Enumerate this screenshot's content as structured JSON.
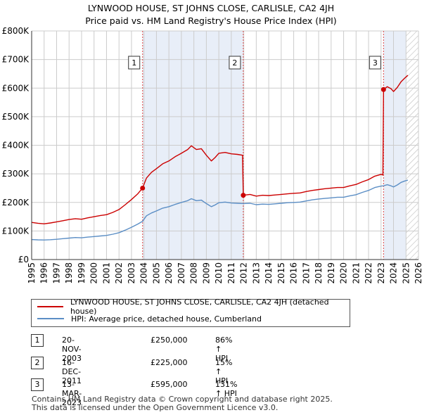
{
  "title_line1": "LYNWOOD HOUSE, ST JOHNS CLOSE, CARLISLE, CA2 4JH",
  "title_line2": "Price paid vs. HM Land Registry's House Price Index (HPI)",
  "colors": {
    "price_paid": "#cc0000",
    "hpi": "#5b8ec5",
    "shade": "#e8eef8",
    "grid": "#cccccc",
    "marker_line": "#dd4444"
  },
  "chart_data": {
    "type": "line",
    "xlim": [
      1995,
      2026
    ],
    "ylim": [
      0,
      800000
    ],
    "x_ticks": [
      "1995",
      "1996",
      "1997",
      "1998",
      "1999",
      "2000",
      "2001",
      "2002",
      "2003",
      "2004",
      "2005",
      "2006",
      "2007",
      "2008",
      "2009",
      "2010",
      "2011",
      "2012",
      "2013",
      "2014",
      "2015",
      "2016",
      "2017",
      "2018",
      "2019",
      "2020",
      "2021",
      "2022",
      "2023",
      "2024",
      "2025",
      "2026"
    ],
    "y_ticks": [
      {
        "value": 0,
        "label": "£0"
      },
      {
        "value": 100000,
        "label": "£100K"
      },
      {
        "value": 200000,
        "label": "£200K"
      },
      {
        "value": 300000,
        "label": "£300K"
      },
      {
        "value": 400000,
        "label": "£400K"
      },
      {
        "value": 500000,
        "label": "£500K"
      },
      {
        "value": 600000,
        "label": "£600K"
      },
      {
        "value": 700000,
        "label": "£700K"
      },
      {
        "value": 800000,
        "label": "£800K"
      }
    ],
    "shaded_ranges": [
      [
        2003.89,
        2011.96
      ],
      [
        2023.2,
        2025.0
      ]
    ],
    "hatched_range": [
      2025.0,
      2026.0
    ],
    "series": [
      {
        "name": "LYNWOOD HOUSE, ST JOHNS CLOSE, CARLISLE, CA2 4JH (detached house)",
        "color": "#cc0000",
        "points": [
          [
            1995.0,
            130000
          ],
          [
            1995.5,
            127000
          ],
          [
            1996.0,
            125000
          ],
          [
            1996.5,
            128000
          ],
          [
            1997.0,
            132000
          ],
          [
            1997.5,
            136000
          ],
          [
            1998.0,
            140000
          ],
          [
            1998.5,
            143000
          ],
          [
            1999.0,
            141000
          ],
          [
            1999.5,
            146000
          ],
          [
            2000.0,
            150000
          ],
          [
            2000.5,
            154000
          ],
          [
            2001.0,
            157000
          ],
          [
            2001.5,
            165000
          ],
          [
            2002.0,
            175000
          ],
          [
            2002.5,
            192000
          ],
          [
            2003.0,
            210000
          ],
          [
            2003.5,
            230000
          ],
          [
            2003.89,
            250000
          ],
          [
            2004.2,
            285000
          ],
          [
            2004.6,
            305000
          ],
          [
            2005.0,
            318000
          ],
          [
            2005.5,
            335000
          ],
          [
            2006.0,
            345000
          ],
          [
            2006.5,
            360000
          ],
          [
            2007.0,
            372000
          ],
          [
            2007.5,
            385000
          ],
          [
            2007.8,
            398000
          ],
          [
            2008.2,
            385000
          ],
          [
            2008.6,
            388000
          ],
          [
            2009.0,
            365000
          ],
          [
            2009.4,
            345000
          ],
          [
            2009.7,
            357000
          ],
          [
            2010.0,
            372000
          ],
          [
            2010.5,
            375000
          ],
          [
            2011.0,
            370000
          ],
          [
            2011.5,
            368000
          ],
          [
            2011.9,
            365000
          ],
          [
            2011.96,
            225000
          ],
          [
            2012.5,
            228000
          ],
          [
            2013.0,
            222000
          ],
          [
            2013.5,
            225000
          ],
          [
            2014.0,
            224000
          ],
          [
            2014.5,
            226000
          ],
          [
            2015.0,
            228000
          ],
          [
            2015.5,
            230000
          ],
          [
            2016.0,
            232000
          ],
          [
            2016.5,
            233000
          ],
          [
            2017.0,
            238000
          ],
          [
            2017.5,
            242000
          ],
          [
            2018.0,
            245000
          ],
          [
            2018.5,
            248000
          ],
          [
            2019.0,
            250000
          ],
          [
            2019.5,
            252000
          ],
          [
            2020.0,
            252000
          ],
          [
            2020.5,
            258000
          ],
          [
            2021.0,
            263000
          ],
          [
            2021.5,
            272000
          ],
          [
            2022.0,
            280000
          ],
          [
            2022.5,
            292000
          ],
          [
            2023.0,
            298000
          ],
          [
            2023.15,
            296000
          ],
          [
            2023.2,
            595000
          ],
          [
            2023.5,
            605000
          ],
          [
            2023.8,
            598000
          ],
          [
            2024.0,
            588000
          ],
          [
            2024.3,
            602000
          ],
          [
            2024.6,
            622000
          ],
          [
            2024.9,
            635000
          ],
          [
            2025.15,
            645000
          ]
        ]
      },
      {
        "name": "HPI: Average price, detached house, Cumberland",
        "color": "#5b8ec5",
        "points": [
          [
            1995.0,
            70000
          ],
          [
            1995.5,
            69000
          ],
          [
            1996.0,
            68500
          ],
          [
            1996.5,
            69500
          ],
          [
            1997.0,
            71000
          ],
          [
            1997.5,
            73000
          ],
          [
            1998.0,
            75000
          ],
          [
            1998.5,
            77000
          ],
          [
            1999.0,
            76000
          ],
          [
            1999.5,
            78500
          ],
          [
            2000.0,
            80500
          ],
          [
            2000.5,
            82500
          ],
          [
            2001.0,
            84500
          ],
          [
            2001.5,
            88500
          ],
          [
            2002.0,
            94000
          ],
          [
            2002.5,
            103000
          ],
          [
            2003.0,
            113000
          ],
          [
            2003.5,
            124000
          ],
          [
            2003.89,
            134000
          ],
          [
            2004.2,
            153000
          ],
          [
            2004.6,
            163000
          ],
          [
            2005.0,
            170000
          ],
          [
            2005.5,
            180000
          ],
          [
            2006.0,
            185000
          ],
          [
            2006.5,
            193000
          ],
          [
            2007.0,
            200000
          ],
          [
            2007.5,
            206000
          ],
          [
            2007.8,
            213000
          ],
          [
            2008.2,
            206000
          ],
          [
            2008.6,
            208000
          ],
          [
            2009.0,
            196000
          ],
          [
            2009.4,
            185000
          ],
          [
            2009.7,
            191000
          ],
          [
            2010.0,
            199000
          ],
          [
            2010.5,
            201000
          ],
          [
            2011.0,
            198000
          ],
          [
            2011.5,
            197000
          ],
          [
            2011.96,
            196000
          ],
          [
            2012.5,
            197000
          ],
          [
            2013.0,
            192000
          ],
          [
            2013.5,
            194000
          ],
          [
            2014.0,
            193000
          ],
          [
            2014.5,
            195000
          ],
          [
            2015.0,
            197000
          ],
          [
            2015.5,
            199000
          ],
          [
            2016.0,
            200000
          ],
          [
            2016.5,
            201000
          ],
          [
            2017.0,
            205000
          ],
          [
            2017.5,
            209000
          ],
          [
            2018.0,
            212000
          ],
          [
            2018.5,
            214000
          ],
          [
            2019.0,
            216000
          ],
          [
            2019.5,
            218000
          ],
          [
            2020.0,
            218000
          ],
          [
            2020.5,
            223000
          ],
          [
            2021.0,
            227000
          ],
          [
            2021.5,
            235000
          ],
          [
            2022.0,
            242000
          ],
          [
            2022.5,
            252000
          ],
          [
            2023.0,
            257000
          ],
          [
            2023.2,
            258000
          ],
          [
            2023.5,
            262000
          ],
          [
            2023.8,
            258000
          ],
          [
            2024.0,
            254000
          ],
          [
            2024.3,
            261000
          ],
          [
            2024.6,
            270000
          ],
          [
            2024.9,
            275000
          ],
          [
            2025.15,
            278000
          ]
        ]
      }
    ],
    "sales": [
      {
        "num": "1",
        "x": 2003.89,
        "y": 250000
      },
      {
        "num": "2",
        "x": 2011.96,
        "y": 225000
      },
      {
        "num": "3",
        "x": 2023.2,
        "y": 595000
      }
    ]
  },
  "legend": {
    "price_paid_label": "LYNWOOD HOUSE, ST JOHNS CLOSE, CARLISLE, CA2 4JH (detached house)",
    "hpi_label": "HPI: Average price, detached house, Cumberland"
  },
  "transactions": [
    {
      "num": "1",
      "date": "20-NOV-2003",
      "price": "£250,000",
      "hpi": "86% ↑ HPI"
    },
    {
      "num": "2",
      "date": "16-DEC-2011",
      "price": "£225,000",
      "hpi": "15% ↑ HPI"
    },
    {
      "num": "3",
      "date": "13-MAR-2023",
      "price": "£595,000",
      "hpi": "131% ↑ HPI"
    }
  ],
  "footer_line1": "Contains HM Land Registry data © Crown copyright and database right 2025.",
  "footer_line2": "This data is licensed under the Open Government Licence v3.0."
}
